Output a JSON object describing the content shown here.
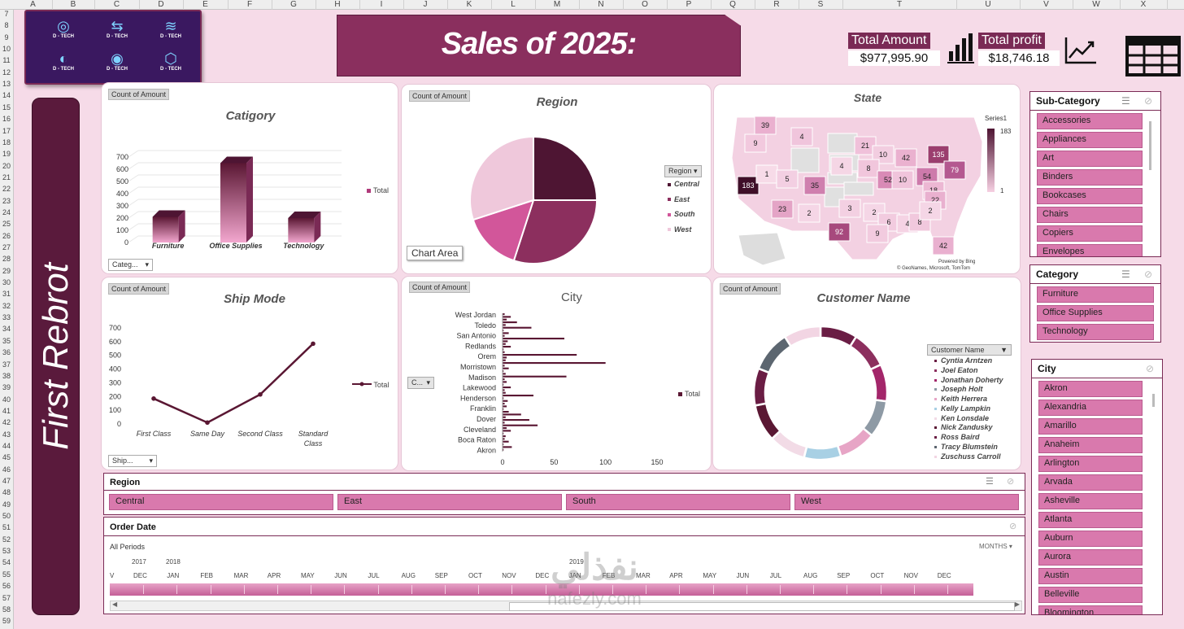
{
  "sheet": {
    "columns": [
      "A",
      "B",
      "C",
      "D",
      "E",
      "F",
      "G",
      "H",
      "I",
      "J",
      "K",
      "L",
      "M",
      "N",
      "O",
      "P",
      "Q",
      "R",
      "S",
      "T",
      "U",
      "V",
      "W",
      "X"
    ],
    "rows": [
      "7",
      "8",
      "9",
      "10",
      "11",
      "12",
      "13",
      "14",
      "15",
      "16",
      "17",
      "18",
      "19",
      "20",
      "21",
      "22",
      "23",
      "24",
      "25",
      "26",
      "27",
      "28",
      "29",
      "30",
      "31",
      "32",
      "33",
      "34",
      "35",
      "36",
      "37",
      "38",
      "39",
      "40",
      "41",
      "42",
      "43",
      "44",
      "45",
      "46",
      "47",
      "48",
      "49",
      "50",
      "51",
      "52",
      "53",
      "54",
      "55",
      "56",
      "57",
      "58",
      "59"
    ]
  },
  "logo": {
    "label": "D - TECH"
  },
  "title": "Sales of 2025:",
  "side_banner": "First Rebrot",
  "kpis": {
    "total_amount_label": "Total Amount",
    "total_amount_value": "$977,995.90",
    "total_profit_label": "Total profit",
    "total_profit_value": "$18,746.18"
  },
  "colors": {
    "accent": "#7a2a55",
    "dark": "#4e1533",
    "pink": "#d979ad",
    "bg": "#f6dbe8"
  },
  "charts": {
    "category": {
      "tag": "Count of Amount",
      "title": "Catigory",
      "legend": "Total",
      "dropdown": "Categ...",
      "yticks": [
        "700",
        "600",
        "500",
        "400",
        "300",
        "200",
        "100",
        "0"
      ]
    },
    "region": {
      "tag": "Count of Amount",
      "title": "Region",
      "legend_header": "Region",
      "chart_area_label": "Chart Area"
    },
    "state": {
      "title": "State",
      "series_label": "Series1",
      "scale_max": "183",
      "scale_min": "1",
      "attribution": "© GeoNames, Microsoft, TomTom",
      "powered": "Powered by Bing",
      "values": [
        "39",
        "4",
        "9",
        "21",
        "10",
        "42",
        "135",
        "79",
        "183",
        "1",
        "5",
        "35",
        "4",
        "8",
        "52",
        "10",
        "54",
        "18",
        "22",
        "23",
        "2",
        "3",
        "2",
        "6",
        "4",
        "8",
        "2",
        "92",
        "9",
        "42"
      ]
    },
    "ship_mode": {
      "tag": "Count of Amount",
      "title": "Ship Mode",
      "legend": "Total",
      "dropdown": "Ship...",
      "yticks": [
        "700",
        "600",
        "500",
        "400",
        "300",
        "200",
        "100",
        "0"
      ]
    },
    "city": {
      "tag": "Count of Amount",
      "title": "City",
      "legend": "Total",
      "dropdown": "C...",
      "xticks": [
        "0",
        "50",
        "100",
        "150"
      ],
      "labels": [
        "West Jordan",
        "Toledo",
        "San Antonio",
        "Redlands",
        "Orem",
        "Morristown",
        "Madison",
        "Lakewood",
        "Henderson",
        "Franklin",
        "Dover",
        "Cleveland",
        "Boca Raton",
        "Akron"
      ]
    },
    "customer": {
      "tag": "Count of Amount",
      "title": "Customer Name",
      "legend_header": "Customer Name"
    }
  },
  "chart_data": [
    {
      "type": "bar",
      "title": "Catigory",
      "categories": [
        "Furniture",
        "Office Supplies",
        "Technology"
      ],
      "series": [
        {
          "name": "Total",
          "values": [
            210,
            650,
            200
          ]
        }
      ],
      "ylim": [
        0,
        700
      ]
    },
    {
      "type": "pie",
      "title": "Region",
      "categories": [
        "Central",
        "East",
        "South",
        "West"
      ],
      "values": [
        25,
        30,
        15,
        30
      ],
      "colors": [
        "#4e1533",
        "#8c2f5e",
        "#d2569a",
        "#efc8db"
      ]
    },
    {
      "type": "line",
      "title": "Ship Mode",
      "categories": [
        "First Class",
        "Same Day",
        "Second Class",
        "Standard Class"
      ],
      "series": [
        {
          "name": "Total",
          "values": [
            185,
            10,
            215,
            585
          ]
        }
      ],
      "ylim": [
        0,
        700
      ]
    },
    {
      "type": "bar",
      "title": "City",
      "orientation": "horizontal",
      "xlim": [
        0,
        150
      ],
      "series": [
        {
          "name": "Total",
          "values": [
            2,
            8,
            4,
            14,
            3,
            28,
            1,
            6,
            2,
            60,
            5,
            3,
            8,
            1,
            2,
            72,
            4,
            3,
            100,
            2,
            6,
            1,
            3,
            62,
            2,
            4,
            1,
            8,
            2,
            3,
            30,
            1,
            5,
            2,
            4,
            1,
            6,
            18,
            3,
            26,
            2,
            34,
            4,
            8,
            1,
            3,
            2,
            6,
            1,
            9,
            1
          ]
        }
      ]
    },
    {
      "type": "pie",
      "title": "Customer Name",
      "donut": true,
      "categories": [
        "Cyntia Arntzen",
        "Joel Eaton",
        "Jonathan Doherty",
        "Joseph Holt",
        "Keith Herrera",
        "Kelly Lampkin",
        "Ken Lonsdale",
        "Nick Zandusky",
        "Ross Baird",
        "Tracy Blumstein",
        "Zuschuss Carroll"
      ],
      "values": [
        9,
        9,
        9,
        9,
        9,
        9,
        9,
        9,
        9,
        10,
        9
      ],
      "colors": [
        "#6a1d44",
        "#8c2f5e",
        "#a3266a",
        "#8e9aa5",
        "#e7a5c6",
        "#a8d0e4",
        "#f2dbe6",
        "#5a1733",
        "#6a1d44",
        "#5c6670",
        "#f2d5e3"
      ]
    }
  ],
  "region_slicer": {
    "title": "Region",
    "items": [
      "Central",
      "East",
      "South",
      "West"
    ]
  },
  "order_date": {
    "title": "Order Date",
    "periods": "All Periods",
    "unit": "MONTHS",
    "years": [
      "2017",
      "2018",
      "2019"
    ],
    "months": [
      "V",
      "DEC",
      "JAN",
      "FEB",
      "MAR",
      "APR",
      "MAY",
      "JUN",
      "JUL",
      "AUG",
      "SEP",
      "OCT",
      "NOV",
      "DEC",
      "JAN",
      "FEB",
      "MAR",
      "APR",
      "MAY",
      "JUN",
      "JUL",
      "AUG",
      "SEP",
      "OCT",
      "NOV",
      "DEC"
    ]
  },
  "subcategory_slicer": {
    "title": "Sub-Category",
    "items": [
      "Accessories",
      "Appliances",
      "Art",
      "Binders",
      "Bookcases",
      "Chairs",
      "Copiers",
      "Envelopes"
    ]
  },
  "category_slicer": {
    "title": "Category",
    "items": [
      "Furniture",
      "Office Supplies",
      "Technology"
    ]
  },
  "city_slicer": {
    "title": "City",
    "items": [
      "Akron",
      "Alexandria",
      "Amarillo",
      "Anaheim",
      "Arlington",
      "Arvada",
      "Asheville",
      "Atlanta",
      "Auburn",
      "Aurora",
      "Austin",
      "Belleville",
      "Bloomington"
    ]
  },
  "watermark": {
    "arabic": "نفذلي",
    "latin": "nafezly.com"
  }
}
